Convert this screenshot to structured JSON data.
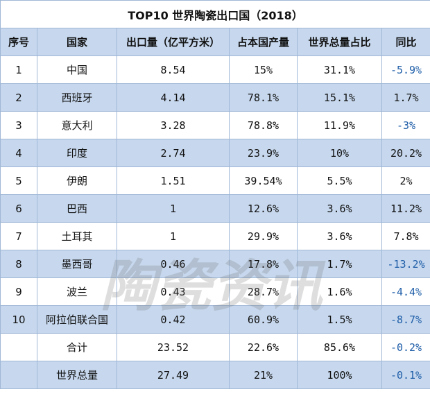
{
  "title": "TOP10 世界陶瓷出口国（2018）",
  "headers": [
    "序号",
    "国家",
    "出口量（亿平方米）",
    "占本国产量",
    "世界总量占比",
    "同比"
  ],
  "rows": [
    {
      "rank": "1",
      "country": "中国",
      "export": "8.54",
      "share_domestic": "15%",
      "share_world": "31.1%",
      "yoy": "-5.9%",
      "yoy_negative": true
    },
    {
      "rank": "2",
      "country": "西班牙",
      "export": "4.14",
      "share_domestic": "78.1%",
      "share_world": "15.1%",
      "yoy": "1.7%",
      "yoy_negative": false
    },
    {
      "rank": "3",
      "country": "意大利",
      "export": "3.28",
      "share_domestic": "78.8%",
      "share_world": "11.9%",
      "yoy": "-3%",
      "yoy_negative": true
    },
    {
      "rank": "4",
      "country": "印度",
      "export": "2.74",
      "share_domestic": "23.9%",
      "share_world": "10%",
      "yoy": "20.2%",
      "yoy_negative": false
    },
    {
      "rank": "5",
      "country": "伊朗",
      "export": "1.51",
      "share_domestic": "39.54%",
      "share_world": "5.5%",
      "yoy": "2%",
      "yoy_negative": false
    },
    {
      "rank": "6",
      "country": "巴西",
      "export": "1",
      "share_domestic": "12.6%",
      "share_world": "3.6%",
      "yoy": "11.2%",
      "yoy_negative": false
    },
    {
      "rank": "7",
      "country": "土耳其",
      "export": "1",
      "share_domestic": "29.9%",
      "share_world": "3.6%",
      "yoy": "7.8%",
      "yoy_negative": false
    },
    {
      "rank": "8",
      "country": "墨西哥",
      "export": "0.46",
      "share_domestic": "17.8%",
      "share_world": "1.7%",
      "yoy": "-13.2%",
      "yoy_negative": true
    },
    {
      "rank": "9",
      "country": "波兰",
      "export": "0.43",
      "share_domestic": "28.7%",
      "share_world": "1.6%",
      "yoy": "-4.4%",
      "yoy_negative": true
    },
    {
      "rank": "10",
      "country": "阿拉伯联合国",
      "export": "0.42",
      "share_domestic": "60.9%",
      "share_world": "1.5%",
      "yoy": "-8.7%",
      "yoy_negative": true
    },
    {
      "rank": "",
      "country": "合计",
      "export": "23.52",
      "share_domestic": "22.6%",
      "share_world": "85.6%",
      "yoy": "-0.2%",
      "yoy_negative": true
    },
    {
      "rank": "",
      "country": "世界总量",
      "export": "27.49",
      "share_domestic": "21%",
      "share_world": "100%",
      "yoy": "-0.1%",
      "yoy_negative": true
    }
  ],
  "watermark": "陶瓷资讯",
  "colors": {
    "header_bg": "#c7d8ee",
    "border": "#9fb7d6",
    "negative": "#1f5ea8"
  }
}
